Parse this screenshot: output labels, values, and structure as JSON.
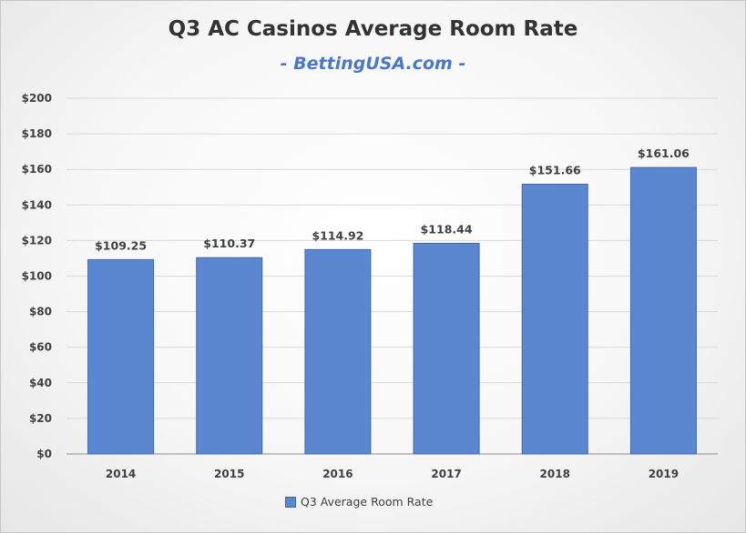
{
  "chart_data": {
    "type": "bar",
    "title": "Q3 AC Casinos Average Room Rate",
    "subtitle": "- BettingUSA.com -",
    "categories": [
      "2014",
      "2015",
      "2016",
      "2017",
      "2018",
      "2019"
    ],
    "series": [
      {
        "name": "Q3 Average Room Rate",
        "values": [
          109.25,
          110.37,
          114.92,
          118.44,
          151.66,
          161.06
        ],
        "data_labels": [
          "$109.25",
          "$110.37",
          "$114.92",
          "$118.44",
          "$151.66",
          "$161.06"
        ]
      }
    ],
    "xlabel": "",
    "ylabel": "",
    "ylim": [
      0,
      200
    ],
    "yticks": [
      0,
      20,
      40,
      60,
      80,
      100,
      120,
      140,
      160,
      180,
      200
    ],
    "ytick_labels": [
      "$0",
      "$20",
      "$40",
      "$60",
      "$80",
      "$100",
      "$120",
      "$140",
      "$160",
      "$180",
      "$200"
    ],
    "grid": true,
    "legend_position": "bottom",
    "colors": {
      "bar": "#5b87d0",
      "bar_border": "#3f68ad",
      "subtitle": "#4a78c8",
      "grid": "#d9d9d9"
    }
  }
}
